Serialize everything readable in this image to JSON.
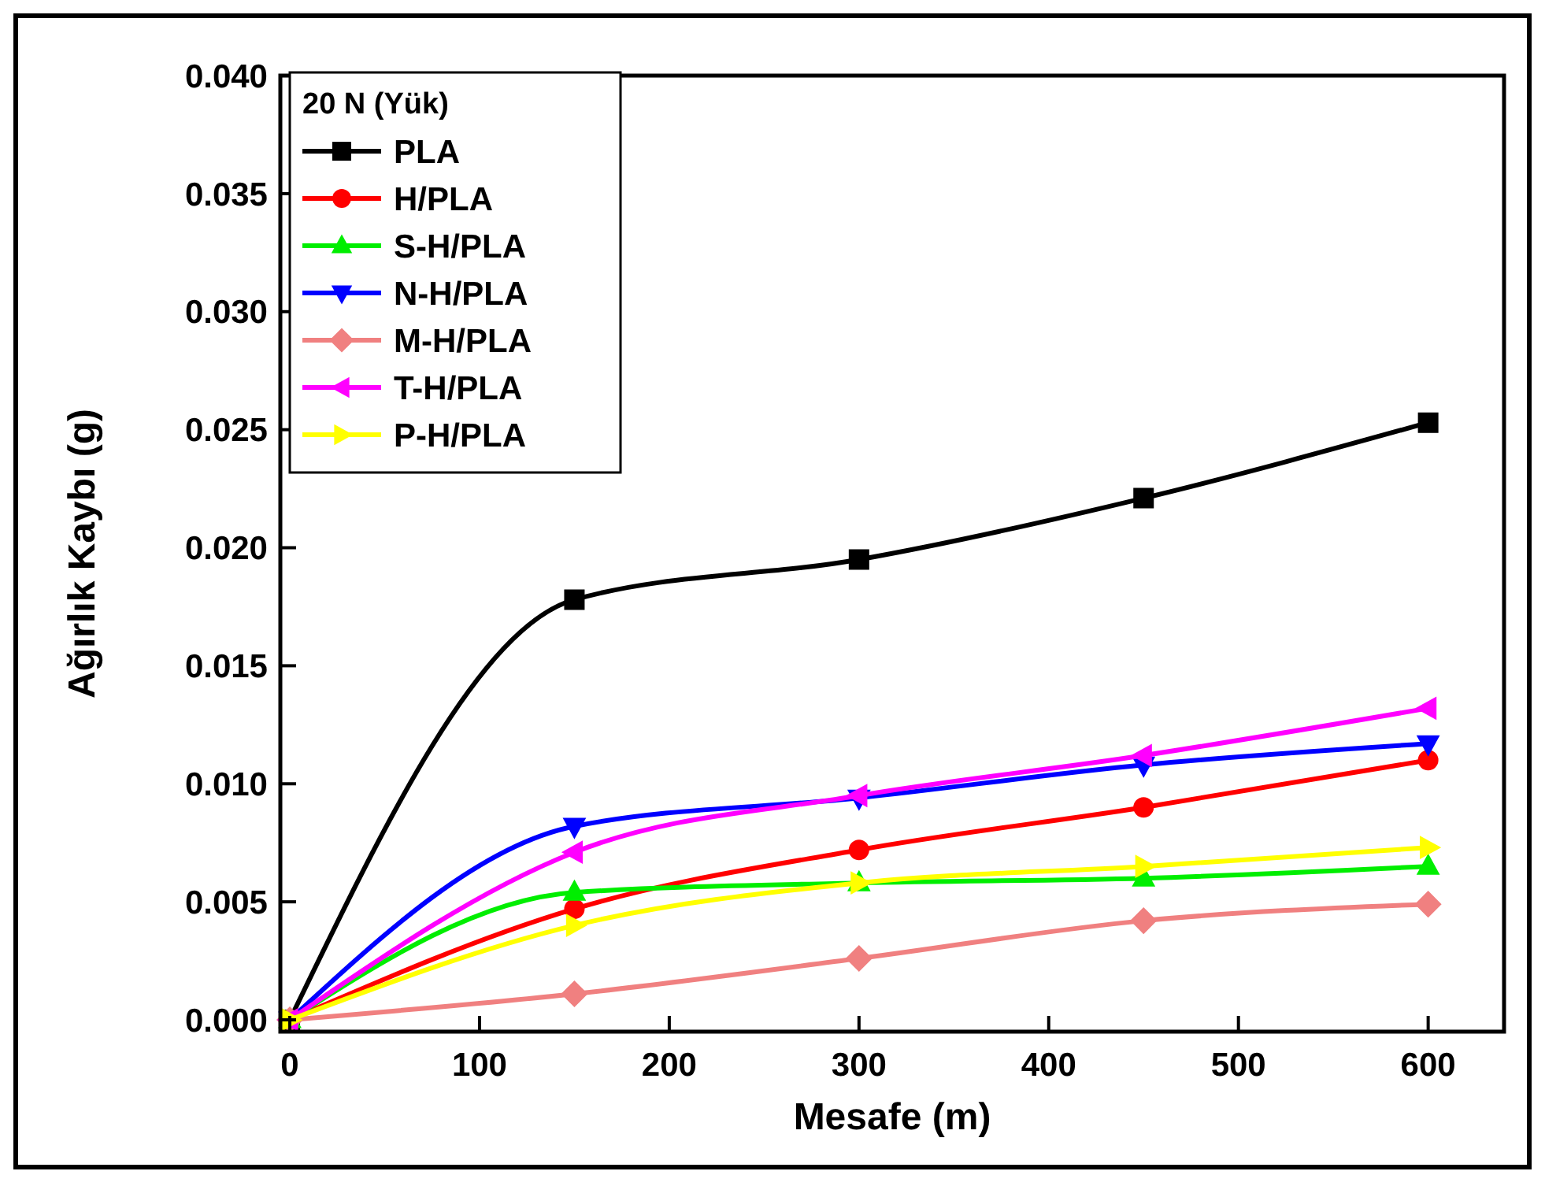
{
  "chart_data": {
    "type": "line",
    "xlabel": "Mesafe (m)",
    "ylabel": "Ağırlık Kaybı (g)",
    "legend_title": "20 N (Yük)",
    "legend": "top left",
    "grid": false,
    "x": [
      0,
      150,
      300,
      450,
      600
    ],
    "xlim": [
      -5,
      640
    ],
    "xticks": [
      0,
      100,
      200,
      300,
      400,
      500,
      600
    ],
    "ylim": [
      -0.0005,
      0.04
    ],
    "yticks": [
      {
        "value": 0,
        "label": "0.000"
      },
      {
        "value": 0.005,
        "label": "0.005"
      },
      {
        "value": 0.01,
        "label": "0.010"
      },
      {
        "value": 0.015,
        "label": "0.015"
      },
      {
        "value": 0.02,
        "label": "0.020"
      },
      {
        "value": 0.025,
        "label": "0.025"
      },
      {
        "value": 0.03,
        "label": "0.030"
      },
      {
        "value": 0.035,
        "label": "0.035"
      },
      {
        "value": 0.04,
        "label": "0.040"
      }
    ],
    "series": [
      {
        "name": "PLA",
        "color": "#000000",
        "marker": "square",
        "values": [
          0,
          0.0178,
          0.0195,
          0.0221,
          0.0253
        ]
      },
      {
        "name": "H/PLA",
        "color": "#ff0000",
        "marker": "circle",
        "values": [
          0,
          0.0047,
          0.0072,
          0.009,
          0.011
        ]
      },
      {
        "name": "S-H/PLA",
        "color": "#00ee00",
        "marker": "triangle",
        "values": [
          0,
          0.0054,
          0.0058,
          0.006,
          0.0065
        ]
      },
      {
        "name": "N-H/PLA",
        "color": "#0000ff",
        "marker": "triangle-down",
        "values": [
          0,
          0.0082,
          0.0094,
          0.0108,
          0.0117
        ]
      },
      {
        "name": "M-H/PLA",
        "color": "#f08080",
        "marker": "diamond",
        "values": [
          0,
          0.0011,
          0.0026,
          0.0042,
          0.0049
        ]
      },
      {
        "name": "T-H/PLA",
        "color": "#ff00ff",
        "marker": "triangle-left",
        "values": [
          0,
          0.0071,
          0.0095,
          0.0112,
          0.0132
        ]
      },
      {
        "name": "P-H/PLA",
        "color": "#ffff00",
        "marker": "triangle-right",
        "values": [
          0,
          0.004,
          0.0058,
          0.0065,
          0.0073
        ]
      }
    ]
  }
}
